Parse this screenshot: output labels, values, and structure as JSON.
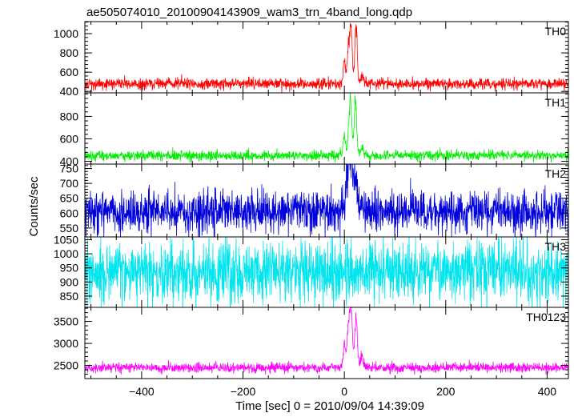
{
  "chart_data": {
    "type": "line",
    "title": "ae505074010_20100904143909_wam3_trn_4band_long.qdp",
    "xlabel": "Time [sec] 0 = 2010/09/04 14:39:09",
    "ylabel": "Counts/sec",
    "xlim": [
      -512,
      442
    ],
    "xticks": [
      -400,
      -200,
      0,
      200,
      400
    ],
    "xtick_labels": [
      "−400",
      "−200",
      "0",
      "200",
      "400"
    ],
    "grid": false,
    "panels": [
      {
        "name": "TH0",
        "color": "#ff0000",
        "ylim": [
          385,
          1125
        ],
        "yticks": [
          400,
          600,
          800,
          1000
        ],
        "ytick_labels": [
          "400",
          "600",
          "800",
          "1000"
        ],
        "baseline": 480,
        "noise": 28,
        "peaks": [
          {
            "x": 0,
            "y": 720
          },
          {
            "x": 8,
            "y": 870
          },
          {
            "x": 13,
            "y": 1120
          },
          {
            "x": 23,
            "y": 1110
          },
          {
            "x": 35,
            "y": 560
          }
        ]
      },
      {
        "name": "TH1",
        "color": "#00ee00",
        "ylim": [
          375,
          1010
        ],
        "yticks": [
          400,
          600,
          800
        ],
        "ytick_labels": [
          "400",
          "600",
          "800"
        ],
        "baseline": 450,
        "noise": 22,
        "peaks": [
          {
            "x": 0,
            "y": 640
          },
          {
            "x": 10,
            "y": 760
          },
          {
            "x": 13,
            "y": 790
          },
          {
            "x": 22,
            "y": 980
          },
          {
            "x": 35,
            "y": 520
          }
        ]
      },
      {
        "name": "TH2",
        "color": "#0000dd",
        "ylim": [
          520,
          765
        ],
        "yticks": [
          550,
          600,
          650,
          700,
          750
        ],
        "ytick_labels": [
          "550",
          "600",
          "650",
          "700",
          "750"
        ],
        "baseline": 605,
        "noise": 35,
        "peaks": [
          {
            "x": 6,
            "y": 700
          },
          {
            "x": 10,
            "y": 760
          },
          {
            "x": 15,
            "y": 720
          },
          {
            "x": 22,
            "y": 690
          }
        ]
      },
      {
        "name": "TH3",
        "color": "#00e5ee",
        "ylim": [
          810,
          1060
        ],
        "yticks": [
          850,
          900,
          950,
          1000,
          1050
        ],
        "ytick_labels": [
          "850",
          "900",
          "950",
          "1000",
          "1050"
        ],
        "baseline": 935,
        "noise": 55,
        "peaks": []
      },
      {
        "name": "TH0123",
        "color": "#ff00ff",
        "ylim": [
          2200,
          3820
        ],
        "yticks": [
          2500,
          3000,
          3500
        ],
        "ytick_labels": [
          "2500",
          "3000",
          "3500"
        ],
        "baseline": 2450,
        "noise": 55,
        "peaks": [
          {
            "x": 0,
            "y": 3000
          },
          {
            "x": 8,
            "y": 3350
          },
          {
            "x": 13,
            "y": 3780
          },
          {
            "x": 23,
            "y": 3500
          },
          {
            "x": 35,
            "y": 2700
          }
        ]
      }
    ]
  }
}
